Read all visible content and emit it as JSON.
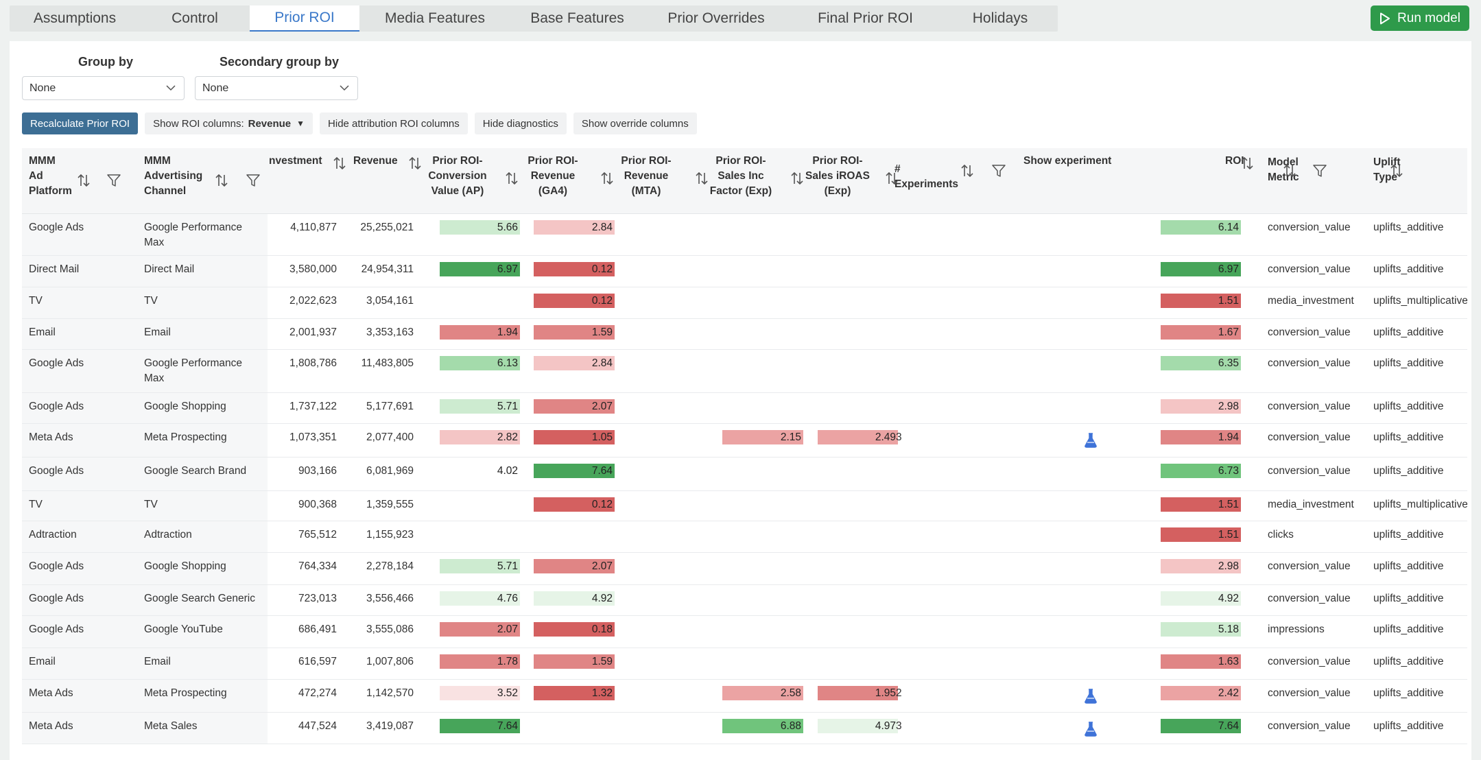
{
  "tabs": [
    {
      "label": "Assumptions",
      "active": false
    },
    {
      "label": "Control",
      "active": false
    },
    {
      "label": "Prior ROI",
      "active": true
    },
    {
      "label": "Media Features",
      "active": false
    },
    {
      "label": "Base Features",
      "active": false
    },
    {
      "label": "Prior Overrides",
      "active": false
    },
    {
      "label": "Final Prior ROI",
      "active": false
    },
    {
      "label": "Holidays",
      "active": false
    }
  ],
  "run_button": {
    "label": "Run model"
  },
  "grouping": {
    "group_by_label": "Group by",
    "group_by_value": "None",
    "secondary_label": "Secondary group by",
    "secondary_value": "None"
  },
  "actions": {
    "recalculate": "Recalculate Prior ROI",
    "show_roi_prefix": "Show ROI columns:",
    "show_roi_value": "Revenue",
    "hide_attribution": "Hide attribution ROI columns",
    "hide_diagnostics": "Hide diagnostics",
    "show_override": "Show override columns"
  },
  "columns": {
    "platform": "MMM\nAd\nPlatform",
    "channel": "MMM\nAdvertising\nChannel",
    "investment": "nvestment",
    "revenue": "Revenue",
    "prior_ap": "Prior ROI-\nConversion\nValue (AP)",
    "prior_ga4": "Prior ROI-\nRevenue\n(GA4)",
    "prior_mta": "Prior ROI-\nRevenue\n(MTA)",
    "prior_sales_inc": "Prior ROI-\nSales Inc\nFactor (Exp)",
    "prior_iroas": "Prior ROI-\nSales iROAS\n(Exp)",
    "experiments": "#\nExperiments",
    "show_experiment": "Show experiment",
    "roi": "ROI",
    "model_metric": "Model\nMetric",
    "uplift_type": "Uplift\nType"
  },
  "colors": {
    "green_dark": "#47a55a",
    "green_mid": "#70c47c",
    "green_light": "#a4dbab",
    "green_pale": "#cdebd0",
    "green_faint": "#e6f4e7",
    "red_dark": "#d46060",
    "red_mid": "#e08585",
    "red_light": "#eba3a3",
    "red_pale": "#f4c5c5",
    "red_faint": "#f9e2e2",
    "accent": "#3a78c9",
    "flask": "#3f73d8"
  },
  "rows": [
    {
      "platform": "Google Ads",
      "channel": "Google Performance Max",
      "investment": "4,110,877",
      "revenue": "25,255,021",
      "ap": "5.66",
      "ap_c": "green_pale",
      "ga4": "2.84",
      "ga4_c": "red_pale",
      "mta": "",
      "sales_inc": "",
      "sales_inc_c": "",
      "iroas": "",
      "iroas_c": "",
      "experiments": "",
      "flask": false,
      "roi": "6.14",
      "roi_c": "green_light",
      "metric": "conversion_value",
      "uplift": "uplifts_additive"
    },
    {
      "platform": "Direct Mail",
      "channel": "Direct Mail",
      "investment": "3,580,000",
      "revenue": "24,954,311",
      "ap": "6.97",
      "ap_c": "green_dark",
      "ga4": "0.12",
      "ga4_c": "red_dark",
      "mta": "",
      "sales_inc": "",
      "sales_inc_c": "",
      "iroas": "",
      "iroas_c": "",
      "experiments": "",
      "flask": false,
      "roi": "6.97",
      "roi_c": "green_dark",
      "metric": "conversion_value",
      "uplift": "uplifts_additive"
    },
    {
      "platform": "TV",
      "channel": "TV",
      "investment": "2,022,623",
      "revenue": "3,054,161",
      "ap": "",
      "ap_c": "",
      "ga4": "0.12",
      "ga4_c": "red_dark",
      "mta": "",
      "sales_inc": "",
      "sales_inc_c": "",
      "iroas": "",
      "iroas_c": "",
      "experiments": "",
      "flask": false,
      "roi": "1.51",
      "roi_c": "red_dark",
      "metric": "media_investment",
      "uplift": "uplifts_multiplicative_"
    },
    {
      "platform": "Email",
      "channel": "Email",
      "investment": "2,001,937",
      "revenue": "3,353,163",
      "ap": "1.94",
      "ap_c": "red_mid",
      "ga4": "1.59",
      "ga4_c": "red_mid",
      "mta": "",
      "sales_inc": "",
      "sales_inc_c": "",
      "iroas": "",
      "iroas_c": "",
      "experiments": "",
      "flask": false,
      "roi": "1.67",
      "roi_c": "red_mid",
      "metric": "conversion_value",
      "uplift": "uplifts_additive"
    },
    {
      "platform": "Google Ads",
      "channel": "Google Performance Max",
      "investment": "1,808,786",
      "revenue": "11,483,805",
      "ap": "6.13",
      "ap_c": "green_light",
      "ga4": "2.84",
      "ga4_c": "red_pale",
      "mta": "",
      "sales_inc": "",
      "sales_inc_c": "",
      "iroas": "",
      "iroas_c": "",
      "experiments": "",
      "flask": false,
      "roi": "6.35",
      "roi_c": "green_light",
      "metric": "conversion_value",
      "uplift": "uplifts_additive"
    },
    {
      "platform": "Google Ads",
      "channel": "Google Shopping",
      "investment": "1,737,122",
      "revenue": "5,177,691",
      "ap": "5.71",
      "ap_c": "green_pale",
      "ga4": "2.07",
      "ga4_c": "red_mid",
      "mta": "",
      "sales_inc": "",
      "sales_inc_c": "",
      "iroas": "",
      "iroas_c": "",
      "experiments": "",
      "flask": false,
      "roi": "2.98",
      "roi_c": "red_pale",
      "metric": "conversion_value",
      "uplift": "uplifts_additive"
    },
    {
      "platform": "Meta Ads",
      "channel": "Meta Prospecting",
      "investment": "1,073,351",
      "revenue": "2,077,400",
      "ap": "2.82",
      "ap_c": "red_pale",
      "ga4": "1.05",
      "ga4_c": "red_dark",
      "mta": "",
      "sales_inc": "2.15",
      "sales_inc_c": "red_light",
      "iroas": "2.49",
      "iroas_c": "red_light",
      "experiments": "3",
      "flask": true,
      "roi": "1.94",
      "roi_c": "red_mid",
      "metric": "conversion_value",
      "uplift": "uplifts_additive"
    },
    {
      "platform": "Google Ads",
      "channel": "Google Search Brand",
      "investment": "903,166",
      "revenue": "6,081,969",
      "ap": "4.02",
      "ap_c": "",
      "ga4": "7.64",
      "ga4_c": "green_dark",
      "mta": "",
      "sales_inc": "",
      "sales_inc_c": "",
      "iroas": "",
      "iroas_c": "",
      "experiments": "",
      "flask": false,
      "roi": "6.73",
      "roi_c": "green_mid",
      "metric": "conversion_value",
      "uplift": "uplifts_additive"
    },
    {
      "platform": "TV",
      "channel": "TV",
      "investment": "900,368",
      "revenue": "1,359,555",
      "ap": "",
      "ap_c": "",
      "ga4": "0.12",
      "ga4_c": "red_dark",
      "mta": "",
      "sales_inc": "",
      "sales_inc_c": "",
      "iroas": "",
      "iroas_c": "",
      "experiments": "",
      "flask": false,
      "roi": "1.51",
      "roi_c": "red_dark",
      "metric": "media_investment",
      "uplift": "uplifts_multiplicative_"
    },
    {
      "platform": "Adtraction",
      "channel": "Adtraction",
      "investment": "765,512",
      "revenue": "1,155,923",
      "ap": "",
      "ap_c": "",
      "ga4": "",
      "ga4_c": "",
      "mta": "",
      "sales_inc": "",
      "sales_inc_c": "",
      "iroas": "",
      "iroas_c": "",
      "experiments": "",
      "flask": false,
      "roi": "1.51",
      "roi_c": "red_dark",
      "metric": "clicks",
      "uplift": "uplifts_additive"
    },
    {
      "platform": "Google Ads",
      "channel": "Google Shopping",
      "investment": "764,334",
      "revenue": "2,278,184",
      "ap": "5.71",
      "ap_c": "green_pale",
      "ga4": "2.07",
      "ga4_c": "red_mid",
      "mta": "",
      "sales_inc": "",
      "sales_inc_c": "",
      "iroas": "",
      "iroas_c": "",
      "experiments": "",
      "flask": false,
      "roi": "2.98",
      "roi_c": "red_pale",
      "metric": "conversion_value",
      "uplift": "uplifts_additive"
    },
    {
      "platform": "Google Ads",
      "channel": "Google Search Generic",
      "investment": "723,013",
      "revenue": "3,556,466",
      "ap": "4.76",
      "ap_c": "green_faint",
      "ga4": "4.92",
      "ga4_c": "green_faint",
      "mta": "",
      "sales_inc": "",
      "sales_inc_c": "",
      "iroas": "",
      "iroas_c": "",
      "experiments": "",
      "flask": false,
      "roi": "4.92",
      "roi_c": "green_faint",
      "metric": "conversion_value",
      "uplift": "uplifts_additive"
    },
    {
      "platform": "Google Ads",
      "channel": "Google YouTube",
      "investment": "686,491",
      "revenue": "3,555,086",
      "ap": "2.07",
      "ap_c": "red_mid",
      "ga4": "0.18",
      "ga4_c": "red_dark",
      "mta": "",
      "sales_inc": "",
      "sales_inc_c": "",
      "iroas": "",
      "iroas_c": "",
      "experiments": "",
      "flask": false,
      "roi": "5.18",
      "roi_c": "green_pale",
      "metric": "impressions",
      "uplift": "uplifts_additive"
    },
    {
      "platform": "Email",
      "channel": "Email",
      "investment": "616,597",
      "revenue": "1,007,806",
      "ap": "1.78",
      "ap_c": "red_mid",
      "ga4": "1.59",
      "ga4_c": "red_mid",
      "mta": "",
      "sales_inc": "",
      "sales_inc_c": "",
      "iroas": "",
      "iroas_c": "",
      "experiments": "",
      "flask": false,
      "roi": "1.63",
      "roi_c": "red_mid",
      "metric": "conversion_value",
      "uplift": "uplifts_additive"
    },
    {
      "platform": "Meta Ads",
      "channel": "Meta Prospecting",
      "investment": "472,274",
      "revenue": "1,142,570",
      "ap": "3.52",
      "ap_c": "red_faint",
      "ga4": "1.32",
      "ga4_c": "red_dark",
      "mta": "",
      "sales_inc": "2.58",
      "sales_inc_c": "red_light",
      "iroas": "1.95",
      "iroas_c": "red_mid",
      "experiments": "2",
      "flask": true,
      "roi": "2.42",
      "roi_c": "red_light",
      "metric": "conversion_value",
      "uplift": "uplifts_additive"
    },
    {
      "platform": "Meta Ads",
      "channel": "Meta Sales",
      "investment": "447,524",
      "revenue": "3,419,087",
      "ap": "7.64",
      "ap_c": "green_dark",
      "ga4": "",
      "ga4_c": "",
      "mta": "",
      "sales_inc": "6.88",
      "sales_inc_c": "green_mid",
      "iroas": "4.97",
      "iroas_c": "green_faint",
      "experiments": "3",
      "flask": true,
      "roi": "7.64",
      "roi_c": "green_dark",
      "metric": "conversion_value",
      "uplift": "uplifts_additive"
    }
  ]
}
